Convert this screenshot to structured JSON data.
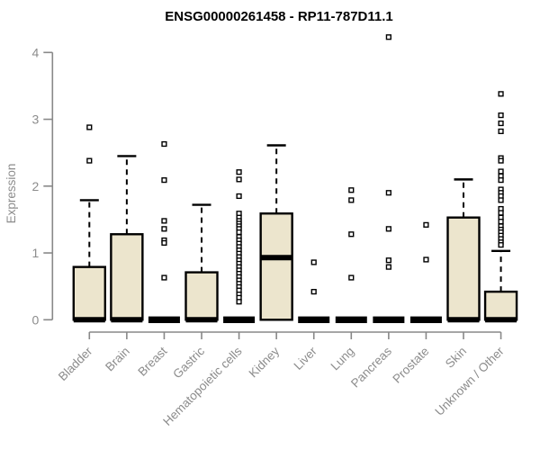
{
  "window": {
    "background": "#ffffff"
  },
  "colors": {
    "box_fill": "#ece5cd",
    "box_border": "#000000",
    "median": "#000000",
    "whisker": "#000000",
    "outlier_stroke": "#000000",
    "outlier_fill": "#ffffff",
    "axis": "#888888",
    "tick_label": "#8c8c8c",
    "title": "#000000"
  },
  "chart_data": {
    "type": "boxplot",
    "title": "ENSG00000261458 - RP11-787D11.1",
    "xlabel": "",
    "ylabel": "Expression",
    "ylim": [
      0,
      4
    ],
    "yticks": [
      0,
      1,
      2,
      3,
      4
    ],
    "grid": false,
    "legend": "none",
    "categories": [
      "Bladder",
      "Brain",
      "Breast",
      "Gastric",
      "Hematopoietic cells",
      "Kidney",
      "Liver",
      "Lung",
      "Pancreas",
      "Prostate",
      "Skin",
      "Unknown / Other"
    ],
    "series": [
      {
        "name": "Bladder",
        "whisker_low": 0,
        "q1": 0,
        "median": 0,
        "q3": 0.79,
        "whisker_high": 1.79,
        "outliers": [
          2.88,
          2.38
        ]
      },
      {
        "name": "Brain",
        "whisker_low": 0,
        "q1": 0,
        "median": 0,
        "q3": 1.28,
        "whisker_high": 2.45,
        "outliers": []
      },
      {
        "name": "Breast",
        "whisker_low": 0,
        "q1": 0,
        "median": 0,
        "q3": 0,
        "whisker_high": 0,
        "outliers": [
          2.63,
          2.09,
          1.48,
          1.36,
          1.19,
          1.15,
          0.63
        ]
      },
      {
        "name": "Gastric",
        "whisker_low": 0,
        "q1": 0,
        "median": 0,
        "q3": 0.71,
        "whisker_high": 1.72,
        "outliers": []
      },
      {
        "name": "Hematopoietic cells",
        "whisker_low": 0,
        "q1": 0,
        "median": 0,
        "q3": 0,
        "whisker_high": 0,
        "outliers": [
          2.21,
          2.1,
          1.85,
          1.59,
          1.53,
          1.48,
          1.44,
          1.4,
          1.36,
          1.31,
          1.24,
          1.19,
          1.14,
          1.09,
          1.04,
          0.99,
          0.94,
          0.89,
          0.84,
          0.79,
          0.74,
          0.69,
          0.64,
          0.59,
          0.54,
          0.49,
          0.44,
          0.38,
          0.33,
          0.27
        ]
      },
      {
        "name": "Kidney",
        "whisker_low": 0,
        "q1": 0,
        "median": 0.93,
        "q3": 1.59,
        "whisker_high": 2.61,
        "outliers": []
      },
      {
        "name": "Liver",
        "whisker_low": 0,
        "q1": 0,
        "median": 0,
        "q3": 0,
        "whisker_high": 0,
        "outliers": [
          0.86,
          0.42
        ]
      },
      {
        "name": "Lung",
        "whisker_low": 0,
        "q1": 0,
        "median": 0,
        "q3": 0,
        "whisker_high": 0,
        "outliers": [
          1.94,
          1.79,
          1.28,
          0.63
        ]
      },
      {
        "name": "Pancreas",
        "whisker_low": 0,
        "q1": 0,
        "median": 0,
        "q3": 0,
        "whisker_high": 0,
        "outliers": [
          4.23,
          1.9,
          1.36,
          0.89,
          0.79
        ]
      },
      {
        "name": "Prostate",
        "whisker_low": 0,
        "q1": 0,
        "median": 0,
        "q3": 0,
        "whisker_high": 0,
        "outliers": [
          1.42,
          0.9
        ]
      },
      {
        "name": "Skin",
        "whisker_low": 0,
        "q1": 0,
        "median": 0,
        "q3": 1.53,
        "whisker_high": 2.1,
        "outliers": []
      },
      {
        "name": "Unknown / Other",
        "whisker_low": 0,
        "q1": 0,
        "median": 0,
        "q3": 0.42,
        "whisker_high": 1.03,
        "outliers": [
          3.38,
          3.06,
          2.94,
          2.82,
          2.42,
          2.38,
          2.22,
          2.15,
          2.09,
          1.95,
          1.9,
          1.85,
          1.79,
          1.66,
          1.6,
          1.53,
          1.47,
          1.4,
          1.35,
          1.31,
          1.26,
          1.21,
          1.16,
          1.12
        ]
      }
    ]
  }
}
